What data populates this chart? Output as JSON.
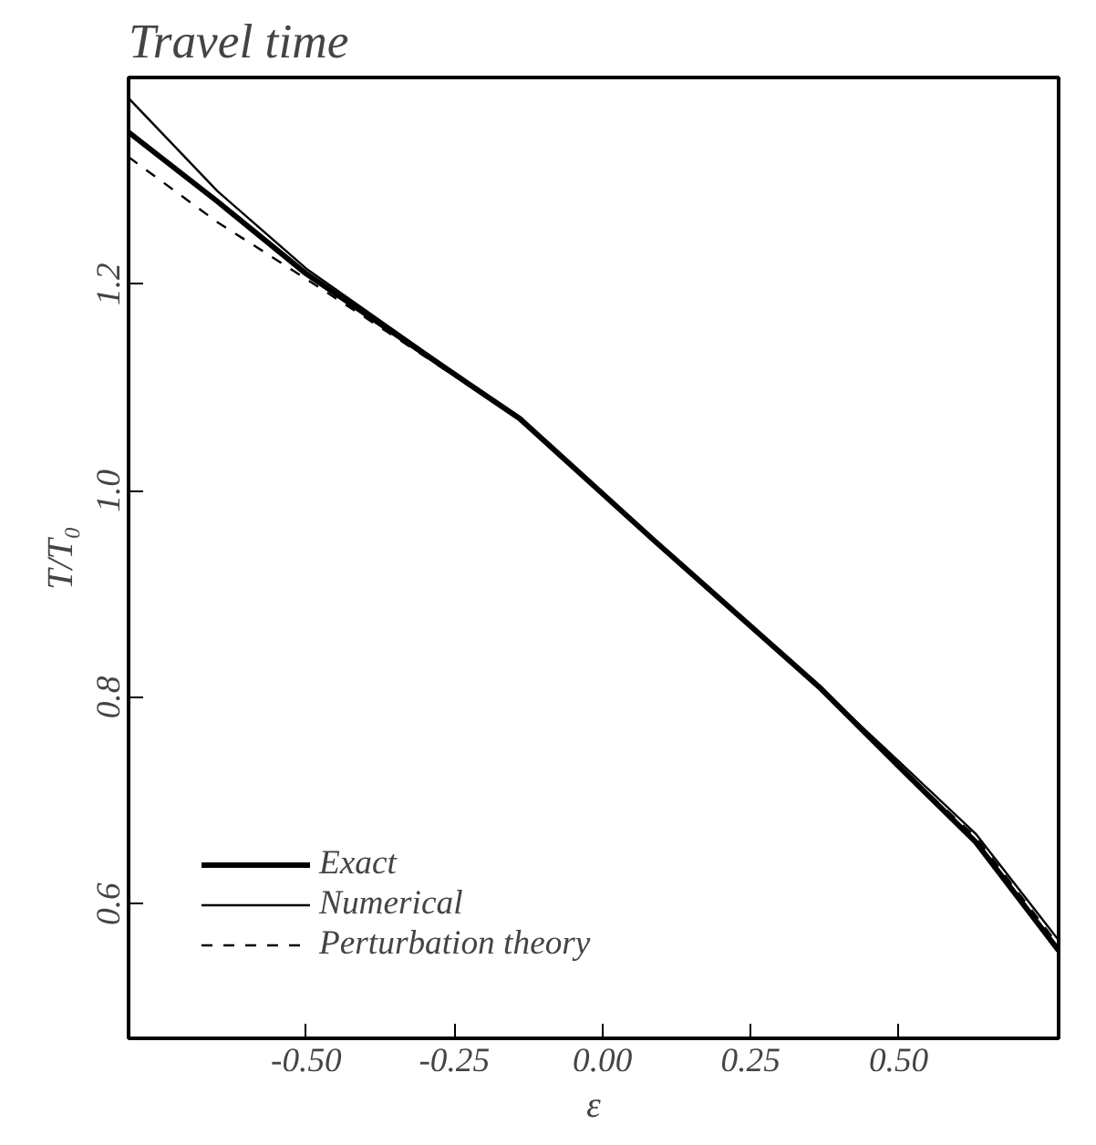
{
  "chart_data": {
    "type": "line",
    "title": "Travel time",
    "xlabel": "ε",
    "ylabel": "T/T₀",
    "xlim": [
      -0.8,
      0.77
    ],
    "ylim": [
      0.47,
      1.4
    ],
    "xticks": [
      {
        "value": -0.5,
        "label": "-0.50"
      },
      {
        "value": -0.25,
        "label": "-0.25"
      },
      {
        "value": 0.0,
        "label": "0.00"
      },
      {
        "value": 0.25,
        "label": "0.25"
      },
      {
        "value": 0.5,
        "label": "0.50"
      }
    ],
    "yticks": [
      {
        "value": 0.6,
        "label": "0.6"
      },
      {
        "value": 0.8,
        "label": "0.8"
      },
      {
        "value": 1.0,
        "label": "1.0"
      },
      {
        "value": 1.2,
        "label": "1.2"
      }
    ],
    "grid": false,
    "legend": "bottom left",
    "series": [
      {
        "name": "Exact",
        "color": "#000000",
        "line_style": "solid",
        "x": [
          -0.8,
          -0.65,
          -0.5,
          -0.14,
          0.085,
          0.366,
          0.506,
          0.63,
          0.77
        ],
        "values": [
          1.347,
          1.28,
          1.21,
          1.07,
          0.953,
          0.81,
          0.73,
          0.66,
          0.555
        ]
      },
      {
        "name": "Numerical",
        "color": "#000000",
        "line_style": "solid",
        "x": [
          -0.8,
          -0.65,
          -0.5,
          -0.14,
          0.085,
          0.366,
          0.506,
          0.63,
          0.77
        ],
        "values": [
          1.38,
          1.29,
          1.215,
          1.07,
          0.953,
          0.81,
          0.735,
          0.668,
          0.565
        ]
      },
      {
        "name": "Perturbation theory",
        "color": "#000000",
        "line_style": "dashed",
        "x": [
          -0.8,
          -0.65,
          -0.5,
          -0.14,
          0.085,
          0.366,
          0.506,
          0.63,
          0.77
        ],
        "values": [
          1.323,
          1.26,
          1.205,
          1.07,
          0.953,
          0.81,
          0.73,
          0.665,
          0.56
        ]
      }
    ]
  }
}
